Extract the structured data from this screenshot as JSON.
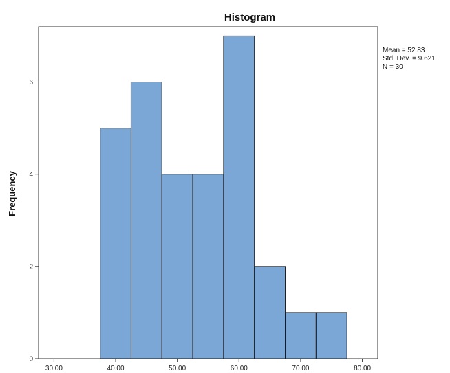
{
  "chart_data": {
    "type": "bar",
    "title": "Histogram",
    "xlabel": "",
    "ylabel": "Frequency",
    "bin_width": 5,
    "bins": [
      {
        "start": 37.5,
        "end": 42.5,
        "count": 5
      },
      {
        "start": 42.5,
        "end": 47.5,
        "count": 6
      },
      {
        "start": 47.5,
        "end": 52.5,
        "count": 4
      },
      {
        "start": 52.5,
        "end": 57.5,
        "count": 4
      },
      {
        "start": 57.5,
        "end": 62.5,
        "count": 7
      },
      {
        "start": 62.5,
        "end": 67.5,
        "count": 2
      },
      {
        "start": 67.5,
        "end": 72.5,
        "count": 1
      },
      {
        "start": 72.5,
        "end": 77.5,
        "count": 1
      }
    ],
    "xlim": [
      27.5,
      82.5
    ],
    "ylim": [
      0,
      7.2
    ],
    "x_ticks": [
      {
        "value": 30,
        "label": "30.00"
      },
      {
        "value": 40,
        "label": "40.00"
      },
      {
        "value": 50,
        "label": "50.00"
      },
      {
        "value": 60,
        "label": "60.00"
      },
      {
        "value": 70,
        "label": "70.00"
      },
      {
        "value": 80,
        "label": "80.00"
      }
    ],
    "y_ticks": [
      {
        "value": 0,
        "label": "0"
      },
      {
        "value": 2,
        "label": "2"
      },
      {
        "value": 4,
        "label": "4"
      },
      {
        "value": 6,
        "label": "6"
      }
    ],
    "stats": {
      "mean": "Mean = 52.83",
      "std_dev": "Std. Dev. = 9.621",
      "n": "N = 30"
    },
    "legend_position": "top-right",
    "grid": false,
    "colors": {
      "bar_fill": "#7BA7D6",
      "bar_stroke": "#1a1a1a",
      "axis": "#333333"
    }
  }
}
